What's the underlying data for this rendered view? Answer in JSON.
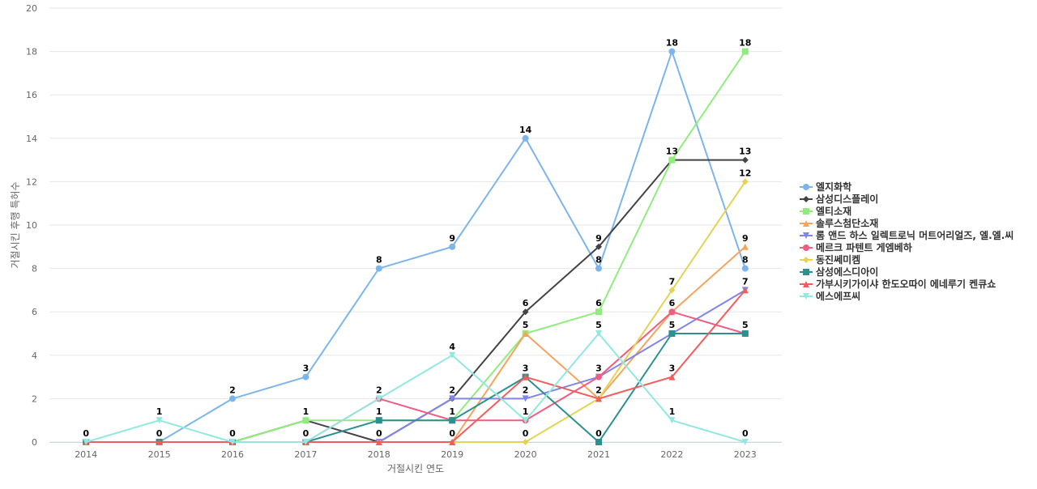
{
  "chart_data": {
    "type": "line",
    "title": "",
    "xlabel": "거절시킨 연도",
    "ylabel": "거절시킨 후행 특허수",
    "categories": [
      "2014",
      "2015",
      "2016",
      "2017",
      "2018",
      "2019",
      "2020",
      "2021",
      "2022",
      "2023"
    ],
    "ylim": [
      0,
      20
    ],
    "yticks": [
      0,
      2,
      4,
      6,
      8,
      10,
      12,
      14,
      16,
      18,
      20
    ],
    "grid": true,
    "legend_position": "right",
    "series": [
      {
        "name": "엘지화학",
        "color": "#7cb5ec",
        "marker": "circle",
        "values": [
          0,
          0,
          2,
          3,
          8,
          9,
          14,
          8,
          18,
          8
        ],
        "labels": [
          null,
          0,
          2,
          3,
          8,
          9,
          14,
          8,
          18,
          8
        ]
      },
      {
        "name": "삼성디스플레이",
        "color": "#434348",
        "marker": "diamond",
        "values": [
          0,
          0,
          0,
          1,
          0,
          2,
          6,
          9,
          13,
          13
        ],
        "labels": [
          null,
          null,
          null,
          null,
          null,
          null,
          6,
          9,
          13,
          13
        ]
      },
      {
        "name": "엘티소재",
        "color": "#90ed7d",
        "marker": "square",
        "values": [
          0,
          0,
          0,
          1,
          1,
          1,
          5,
          6,
          13,
          18
        ],
        "labels": [
          null,
          null,
          null,
          1,
          null,
          null,
          null,
          6,
          null,
          18
        ]
      },
      {
        "name": "솔루스첨단소재",
        "color": "#f7a35c",
        "marker": "triangle",
        "values": [
          0,
          0,
          0,
          0,
          0,
          0,
          5,
          2,
          6,
          9
        ],
        "labels": [
          null,
          null,
          null,
          null,
          null,
          null,
          5,
          null,
          null,
          9
        ]
      },
      {
        "name": "롬 앤드 하스 일렉트로닉 머트어리얼즈, 엘.엘.씨",
        "color": "#8085e9",
        "marker": "triangle-down",
        "values": [
          0,
          0,
          0,
          0,
          0,
          2,
          2,
          3,
          5,
          7
        ],
        "labels": [
          null,
          null,
          null,
          null,
          null,
          2,
          2,
          null,
          null,
          7
        ]
      },
      {
        "name": "메르크 파텐트 게엠베하",
        "color": "#f15c80",
        "marker": "circle",
        "values": [
          0,
          0,
          0,
          0,
          2,
          1,
          1,
          3,
          6,
          5
        ],
        "labels": [
          null,
          null,
          null,
          null,
          null,
          1,
          1,
          3,
          6,
          null
        ]
      },
      {
        "name": "동진쎄미켐",
        "color": "#e4d354",
        "marker": "diamond",
        "values": [
          0,
          0,
          0,
          0,
          0,
          0,
          0,
          2,
          7,
          12
        ],
        "labels": [
          null,
          null,
          null,
          null,
          null,
          null,
          0,
          2,
          7,
          12
        ]
      },
      {
        "name": "삼성에스디아이",
        "color": "#2b908f",
        "marker": "square",
        "values": [
          0,
          0,
          0,
          0,
          1,
          1,
          3,
          0,
          5,
          5
        ],
        "labels": [
          null,
          null,
          0,
          0,
          1,
          null,
          null,
          0,
          5,
          5
        ]
      },
      {
        "name": "가부시키가이샤 한도오따이 에네루기 켄큐쇼",
        "color": "#f45b5b",
        "marker": "triangle",
        "values": [
          0,
          0,
          0,
          0,
          0,
          0,
          3,
          2,
          3,
          7
        ],
        "labels": [
          0,
          null,
          null,
          null,
          0,
          0,
          3,
          null,
          3,
          null
        ]
      },
      {
        "name": "에스에프씨",
        "color": "#91e8e1",
        "marker": "triangle-down",
        "values": [
          0,
          1,
          0,
          0,
          2,
          4,
          1,
          5,
          1,
          0
        ],
        "labels": [
          null,
          1,
          null,
          null,
          2,
          4,
          null,
          5,
          1,
          0
        ]
      }
    ]
  }
}
